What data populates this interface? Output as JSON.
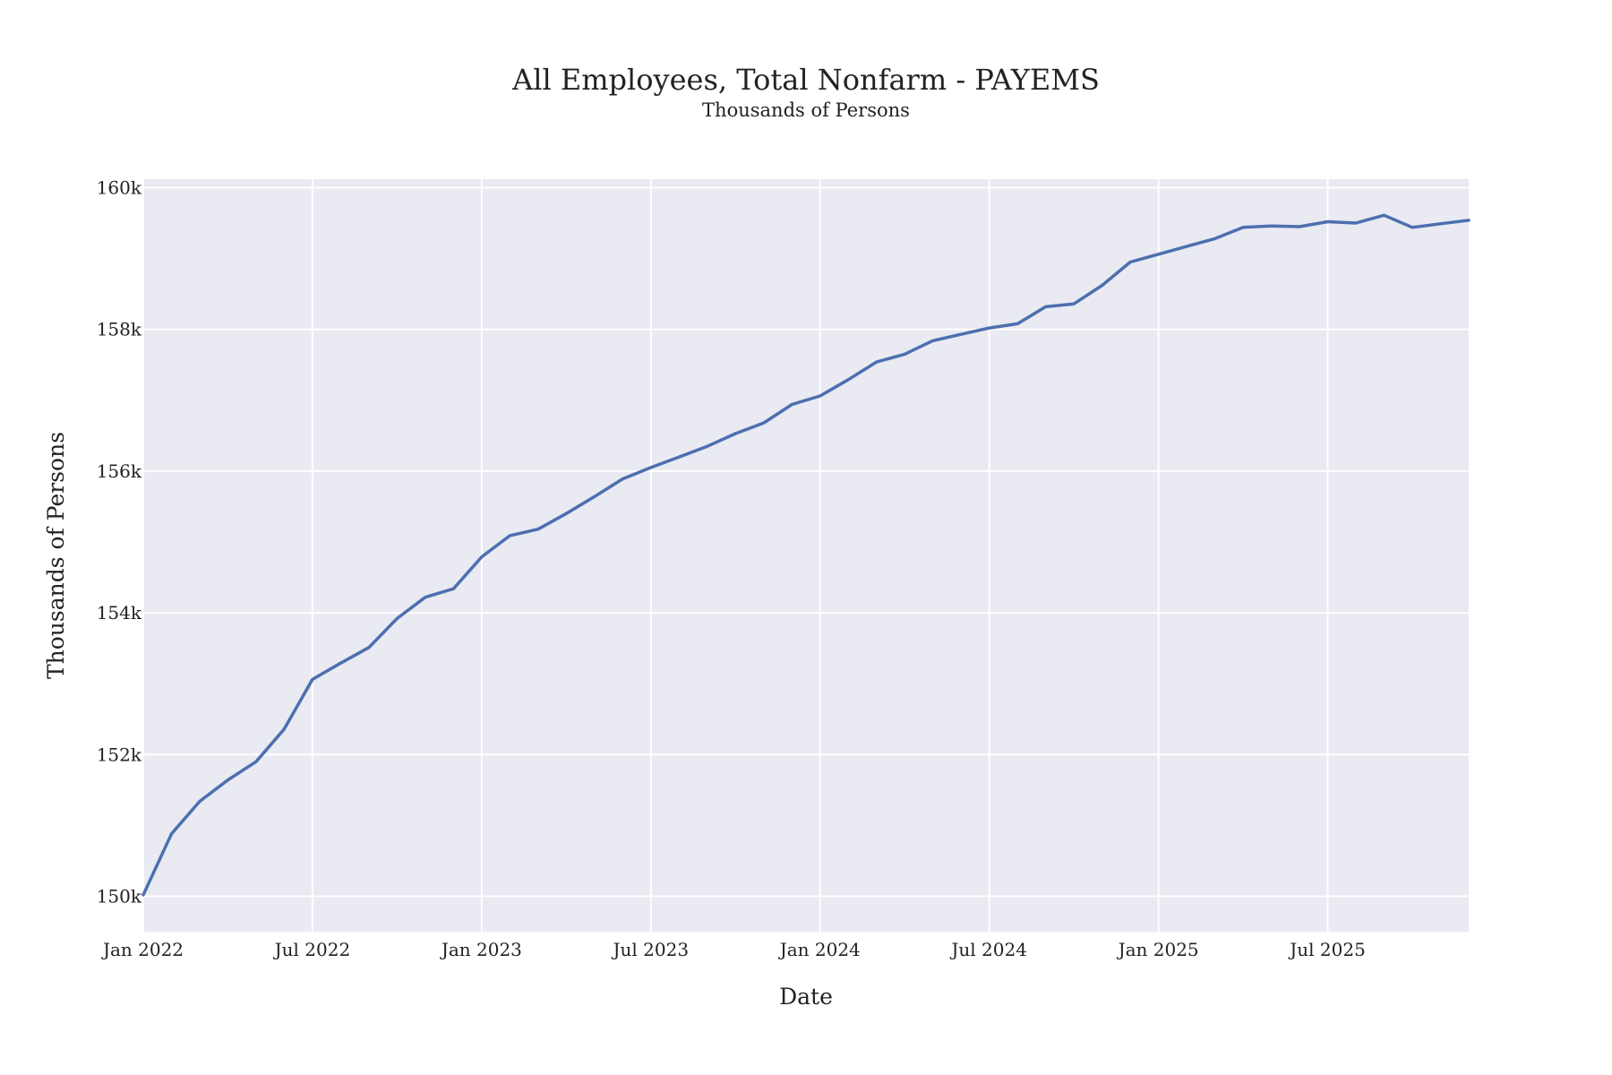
{
  "chart_data": {
    "type": "line",
    "title": "All Employees, Total Nonfarm - PAYEMS",
    "subtitle": "Thousands of Persons",
    "xlabel": "Date",
    "ylabel": "Thousands of Persons",
    "ylim": [
      149500,
      160120
    ],
    "xlim": [
      "2022-01",
      "2025-12"
    ],
    "grid": true,
    "yticks": [
      150000,
      152000,
      154000,
      156000,
      158000,
      160000
    ],
    "ytick_labels": [
      "150k",
      "152k",
      "154k",
      "156k",
      "158k",
      "160k"
    ],
    "xticks": [
      "2022-01",
      "2022-07",
      "2023-01",
      "2023-07",
      "2024-01",
      "2024-07",
      "2025-01",
      "2025-07"
    ],
    "xtick_labels": [
      "Jan 2022",
      "Jul 2022",
      "Jan 2023",
      "Jul 2023",
      "Jan 2024",
      "Jul 2024",
      "Jan 2025",
      "Jul 2025"
    ],
    "colors": {
      "plot_bg": "#e9eaf2",
      "line": "#4c6faf"
    },
    "series": [
      {
        "x": [
          "2022-01",
          "2022-02",
          "2022-03",
          "2022-04",
          "2022-05",
          "2022-06",
          "2022-07",
          "2022-08",
          "2022-09",
          "2022-10",
          "2022-11",
          "2022-12",
          "2023-01",
          "2023-02",
          "2023-03",
          "2023-04",
          "2023-05",
          "2023-06",
          "2023-07",
          "2023-08",
          "2023-09",
          "2023-10",
          "2023-11",
          "2023-12",
          "2024-01",
          "2024-02",
          "2024-03",
          "2024-04",
          "2024-05",
          "2024-06",
          "2024-07",
          "2024-08",
          "2024-09",
          "2024-10",
          "2024-11",
          "2024-12",
          "2025-01",
          "2025-02",
          "2025-03",
          "2025-04",
          "2025-05",
          "2025-06",
          "2025-07",
          "2025-08",
          "2025-09",
          "2025-10",
          "2025-11",
          "2025-12"
        ],
        "values": [
          150020,
          150880,
          151340,
          151640,
          151900,
          152360,
          153060,
          153290,
          153510,
          153920,
          154220,
          154340,
          154790,
          155090,
          155180,
          155400,
          155640,
          155890,
          156050,
          156200,
          156350,
          156530,
          156680,
          156940,
          157060,
          157290,
          157540,
          157650,
          157840,
          157930,
          158020,
          158080,
          158320,
          158360,
          158620,
          158950,
          159060,
          159170,
          159280,
          159440,
          159460,
          159450,
          159520,
          159500,
          159610,
          159440,
          159490,
          159540
        ]
      }
    ]
  }
}
